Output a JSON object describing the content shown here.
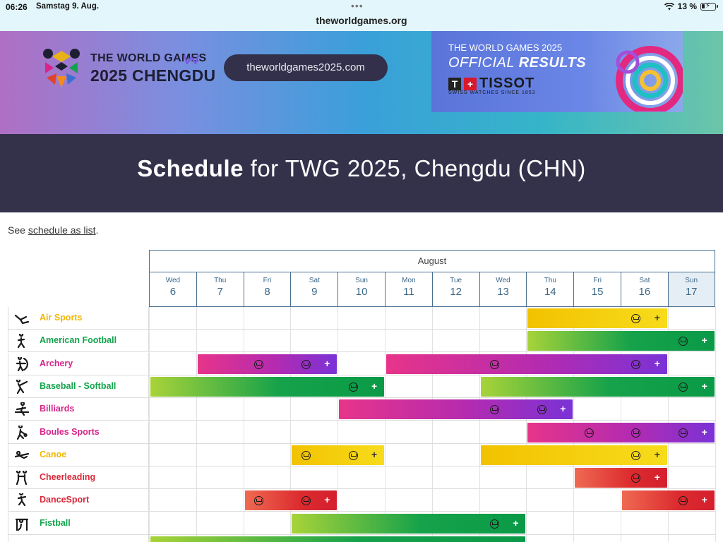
{
  "status_bar": {
    "time": "06:26",
    "date": "Samstag 9. Aug.",
    "url": "theworldgames.org",
    "battery": "13 %"
  },
  "banner": {
    "logo_line1": "THE WORLD GAMES",
    "logo_line2": "2025 CHENGDU",
    "site_button": "theworldgames2025.com",
    "ad_line1": "THE WORLD GAMES 2025",
    "ad_line2_a": "OFFICIAL",
    "ad_line2_b": "RESULTS",
    "ad_brand": "TISSOT",
    "ad_sub": "SWISS WATCHES SINCE 1853"
  },
  "title": {
    "bold": "Schedule",
    "rest": " for TWG 2025, Chengdu (CHN)"
  },
  "see_list": {
    "prefix": "See ",
    "link": "schedule as list",
    "suffix": "."
  },
  "schedule": {
    "month": "August",
    "days": [
      {
        "dow": "Wed",
        "num": "6"
      },
      {
        "dow": "Thu",
        "num": "7"
      },
      {
        "dow": "Fri",
        "num": "8"
      },
      {
        "dow": "Sat",
        "num": "9"
      },
      {
        "dow": "Sun",
        "num": "10"
      },
      {
        "dow": "Mon",
        "num": "11"
      },
      {
        "dow": "Tue",
        "num": "12"
      },
      {
        "dow": "Wed",
        "num": "13"
      },
      {
        "dow": "Thu",
        "num": "14"
      },
      {
        "dow": "Fri",
        "num": "15"
      },
      {
        "dow": "Sat",
        "num": "16"
      },
      {
        "dow": "Sun",
        "num": "17"
      }
    ],
    "today_index": 11,
    "plus_label": "+",
    "sports": [
      {
        "name": "Air Sports",
        "color": "#f2b705",
        "icon": "air-sports-icon",
        "bars": [
          {
            "from": 8,
            "to": 10,
            "medals": [
              10
            ],
            "gradient": "yellow"
          }
        ]
      },
      {
        "name": "American Football",
        "color": "#13a34b",
        "icon": "american-football-icon",
        "bars": [
          {
            "from": 8,
            "to": 11,
            "medals": [
              11
            ],
            "gradient": "green"
          }
        ]
      },
      {
        "name": "Archery",
        "color": "#d6248a",
        "icon": "archery-icon",
        "bars": [
          {
            "from": 1,
            "to": 3,
            "medals": [
              2,
              3
            ],
            "gradient": "pink"
          },
          {
            "from": 5,
            "to": 10,
            "medals": [
              7,
              10
            ],
            "gradient": "pink"
          }
        ]
      },
      {
        "name": "Baseball - Softball",
        "color": "#13a34b",
        "icon": "baseball-softball-icon",
        "bars": [
          {
            "from": 0,
            "to": 4,
            "medals": [
              4
            ],
            "gradient": "green"
          },
          {
            "from": 7,
            "to": 11,
            "medals": [
              11
            ],
            "gradient": "green"
          }
        ]
      },
      {
        "name": "Billiards",
        "color": "#d6248a",
        "icon": "billiards-icon",
        "bars": [
          {
            "from": 4,
            "to": 8,
            "medals": [
              7,
              8
            ],
            "gradient": "pink"
          }
        ]
      },
      {
        "name": "Boules Sports",
        "color": "#d6248a",
        "icon": "boules-sports-icon",
        "bars": [
          {
            "from": 8,
            "to": 11,
            "medals": [
              9,
              10,
              11
            ],
            "gradient": "pink"
          }
        ]
      },
      {
        "name": "Canoe",
        "color": "#f2b705",
        "icon": "canoe-icon",
        "bars": [
          {
            "from": 3,
            "to": 4,
            "medals": [
              3,
              4
            ],
            "gradient": "yellow"
          },
          {
            "from": 7,
            "to": 10,
            "medals": [
              10
            ],
            "gradient": "yellow"
          }
        ]
      },
      {
        "name": "Cheerleading",
        "color": "#d9283a",
        "icon": "cheerleading-icon",
        "bars": [
          {
            "from": 9,
            "to": 10,
            "medals": [
              10
            ],
            "gradient": "red"
          }
        ]
      },
      {
        "name": "DanceSport",
        "color": "#d9283a",
        "icon": "dancesport-icon",
        "bars": [
          {
            "from": 2,
            "to": 3,
            "medals": [
              2,
              3
            ],
            "gradient": "red"
          },
          {
            "from": 10,
            "to": 11,
            "medals": [
              11
            ],
            "gradient": "red"
          }
        ]
      },
      {
        "name": "Fistball",
        "color": "#13a34b",
        "icon": "fistball-icon",
        "bars": [
          {
            "from": 3,
            "to": 7,
            "medals": [
              7
            ],
            "gradient": "green"
          }
        ]
      },
      {
        "name": "",
        "color": "#13a34b",
        "icon": "floorball-icon",
        "bars": [
          {
            "from": 0,
            "to": 7,
            "medals": [
              7
            ],
            "gradient": "green"
          }
        ]
      }
    ]
  }
}
